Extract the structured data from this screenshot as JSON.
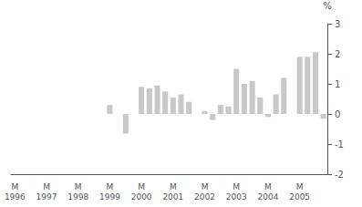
{
  "chart_data": {
    "type": "bar",
    "ylabel": "%",
    "categories": [
      "M\n1996",
      null,
      null,
      null,
      "M\n1997",
      null,
      null,
      null,
      "M\n1998",
      null,
      null,
      null,
      "M\n1999",
      null,
      null,
      null,
      "M\n2000",
      null,
      null,
      null,
      "M\n2001",
      null,
      null,
      null,
      "M\n2002",
      null,
      null,
      null,
      "M\n2003",
      null,
      null,
      null,
      "M\n2004",
      null,
      null,
      null,
      "M\n2005",
      null,
      null,
      null
    ],
    "values": [
      0.0,
      0.0,
      0.0,
      0.0,
      0.0,
      0.0,
      0.0,
      0.0,
      0.0,
      0.0,
      0.0,
      0.0,
      0.3,
      0.0,
      -0.65,
      0.0,
      0.9,
      0.85,
      0.95,
      0.75,
      0.55,
      0.65,
      0.4,
      0.0,
      0.1,
      -0.2,
      0.3,
      0.25,
      1.5,
      1.0,
      1.1,
      0.55,
      -0.1,
      0.65,
      1.2,
      0.0,
      1.9,
      1.9,
      2.05,
      -0.15
    ],
    "color": "#c8c8c8",
    "ylim": [
      -2,
      3
    ],
    "yticks": [
      -2,
      -1,
      0,
      1,
      2,
      3
    ],
    "grid": false
  }
}
